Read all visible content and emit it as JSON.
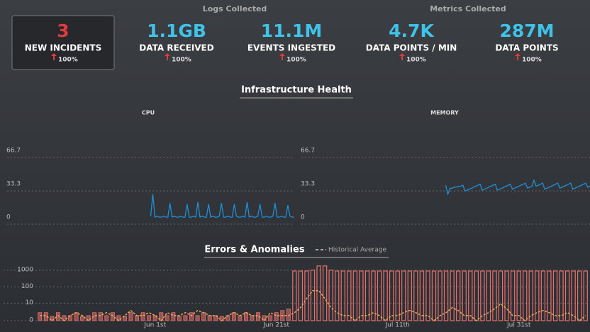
{
  "groups": [
    {
      "title": "Logs Collected"
    },
    {
      "title": "Metrics Collected"
    }
  ],
  "kpis": [
    {
      "value": "3",
      "label": "NEW INCIDENTS",
      "change": "100%"
    },
    {
      "value": "1.1GB",
      "label": "DATA RECEIVED",
      "change": "100%"
    },
    {
      "value": "11.1M",
      "label": "EVENTS INGESTED",
      "change": "100%"
    },
    {
      "value": "4.7K",
      "label": "DATA POINTS / MIN",
      "change": "100%"
    },
    {
      "value": "287M",
      "label": "DATA POINTS",
      "change": "100%"
    }
  ],
  "infra": {
    "title": "Infrastructure Health",
    "charts": [
      {
        "type": "line",
        "title": "CPU",
        "color": "#1f8fd6",
        "ylim": [
          0,
          70
        ],
        "yticks": [
          0,
          33.3,
          66.7
        ],
        "values": [
          null,
          null,
          null,
          null,
          null,
          null,
          null,
          null,
          null,
          null,
          null,
          null,
          null,
          null,
          null,
          null,
          null,
          null,
          null,
          null,
          null,
          null,
          null,
          null,
          null,
          null,
          null,
          null,
          null,
          null,
          null,
          null,
          null,
          null,
          null,
          null,
          null,
          null,
          null,
          null,
          null,
          null,
          null,
          null,
          null,
          null,
          null,
          null,
          null,
          null,
          null,
          null,
          null,
          null,
          null,
          null,
          null,
          null,
          null,
          null,
          null,
          null,
          null,
          null,
          null,
          null,
          null,
          8,
          30,
          7,
          8,
          7,
          7,
          8,
          7,
          7,
          21,
          7,
          8,
          7,
          7,
          8,
          7,
          7,
          20,
          7,
          7,
          8,
          7,
          22,
          7,
          8,
          7,
          7,
          20,
          7,
          8,
          7,
          7,
          8,
          21,
          7,
          7,
          8,
          7,
          7,
          20,
          8,
          7,
          7,
          8,
          7,
          22,
          7,
          8,
          7,
          7,
          8,
          20,
          7,
          7,
          8,
          7,
          7,
          8,
          21,
          7,
          7,
          8,
          7,
          7,
          19,
          8,
          7,
          7
        ]
      },
      {
        "type": "line",
        "title": "MEMORY",
        "color": "#1f8fd6",
        "ylim": [
          0,
          70
        ],
        "yticks": [
          0,
          33.3,
          66.7
        ],
        "values": [
          null,
          null,
          null,
          null,
          null,
          null,
          null,
          null,
          null,
          null,
          null,
          null,
          null,
          null,
          null,
          null,
          null,
          null,
          null,
          null,
          null,
          null,
          null,
          null,
          null,
          null,
          null,
          null,
          null,
          null,
          null,
          null,
          null,
          null,
          null,
          null,
          null,
          null,
          null,
          null,
          null,
          null,
          null,
          null,
          null,
          null,
          null,
          null,
          null,
          null,
          null,
          null,
          null,
          null,
          null,
          null,
          null,
          null,
          null,
          null,
          null,
          null,
          null,
          null,
          null,
          null,
          null,
          39,
          30,
          36,
          36,
          37,
          37,
          38,
          38,
          39,
          33,
          34,
          35,
          36,
          37,
          38,
          39,
          40,
          34,
          35,
          36,
          37,
          38,
          39,
          40,
          34,
          35,
          36,
          37,
          38,
          39,
          40,
          35,
          36,
          37,
          38,
          39,
          40,
          41,
          36,
          37,
          38,
          44,
          38,
          39,
          40,
          41,
          35,
          36,
          37,
          38,
          39,
          40,
          41,
          36,
          37,
          38,
          39,
          40,
          41,
          35,
          36,
          37,
          38,
          39,
          40,
          41,
          37,
          38
        ]
      }
    ]
  },
  "errors": {
    "type": "bar",
    "title": "Errors & Anomalies",
    "scale": "log",
    "ylim": [
      0,
      2000
    ],
    "yticks": [
      0,
      10,
      100,
      1000
    ],
    "xticks": [
      {
        "value": 19,
        "label": "Jun 1st"
      },
      {
        "value": 39,
        "label": "Jun 21st"
      },
      {
        "value": 59,
        "label": "Jul 11th"
      },
      {
        "value": 79,
        "label": "Jul 31st"
      }
    ],
    "series": [
      {
        "color": "#e8716d",
        "values": [
          2,
          2,
          0,
          2,
          1,
          1,
          2,
          0,
          1,
          2,
          2,
          1,
          2,
          1,
          0,
          2,
          1,
          2,
          1,
          1,
          2,
          1,
          2,
          0,
          1,
          2,
          1,
          2,
          1,
          1,
          0,
          1,
          2,
          1,
          2,
          1,
          2,
          1,
          1,
          2,
          3,
          4,
          900,
          900,
          900,
          1000,
          1800,
          1800,
          1000,
          900,
          900,
          900,
          900,
          900,
          900,
          900,
          900,
          900,
          900,
          900,
          900,
          900,
          900,
          900,
          900,
          900,
          900,
          900,
          900,
          900,
          900,
          900,
          900,
          900,
          900,
          900,
          900,
          900,
          900,
          900,
          900,
          900,
          900,
          900,
          900,
          900,
          900,
          900,
          900,
          900,
          900
        ]
      },
      {
        "name": "Historical Average",
        "color": "#e8a95c",
        "values": [
          1,
          1,
          0,
          1,
          0,
          1,
          2,
          1,
          0,
          1,
          1,
          2,
          1,
          0,
          1,
          3,
          1,
          1,
          2,
          1,
          0,
          2,
          1,
          1,
          2,
          1,
          3,
          2,
          1,
          1,
          0,
          1,
          2,
          1,
          2,
          1,
          1,
          0,
          2,
          1,
          1,
          1,
          2,
          5,
          20,
          60,
          60,
          20,
          5,
          2,
          1,
          1,
          0,
          1,
          1,
          2,
          1,
          0,
          1,
          1,
          2,
          3,
          2,
          1,
          1,
          0,
          1,
          2,
          5,
          3,
          1,
          1,
          0,
          1,
          2,
          4,
          9,
          4,
          1,
          1,
          0,
          1,
          2,
          3,
          2,
          1,
          1,
          2,
          1,
          0,
          1
        ]
      }
    ]
  }
}
